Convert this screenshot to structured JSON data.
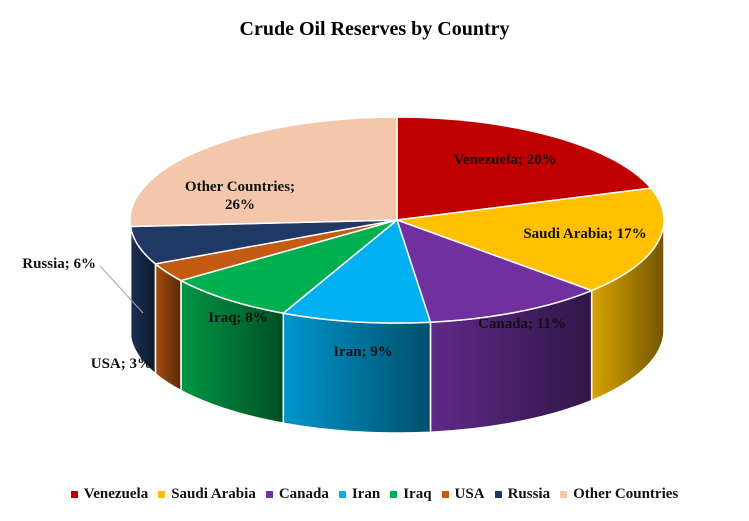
{
  "chart_data": {
    "type": "pie",
    "title": "Crude Oil Reserves by Country",
    "slices": [
      {
        "name": "Venezuela",
        "value": 20,
        "label": "Venezuela; 20%",
        "color": "#C00000"
      },
      {
        "name": "Saudi Arabia",
        "value": 17,
        "label": "Saudi Arabia; 17%",
        "color": "#FFC000"
      },
      {
        "name": "Canada",
        "value": 11,
        "label": "Canada; 11%",
        "color": "#7030A0"
      },
      {
        "name": "Iran",
        "value": 9,
        "label": "Iran; 9%",
        "color": "#00B0F0"
      },
      {
        "name": "Iraq",
        "value": 8,
        "label": "Iraq; 8%",
        "color": "#00B050"
      },
      {
        "name": "USA",
        "value": 3,
        "label": "USA; 3%",
        "color": "#C55A11"
      },
      {
        "name": "Russia",
        "value": 6,
        "label": "Russia; 6%",
        "color": "#1F3864"
      },
      {
        "name": "Other Countries",
        "value": 26,
        "label": "Other Countries;\n26%",
        "color": "#F4C7AC"
      }
    ],
    "legend_position": "bottom",
    "style": "3d"
  }
}
